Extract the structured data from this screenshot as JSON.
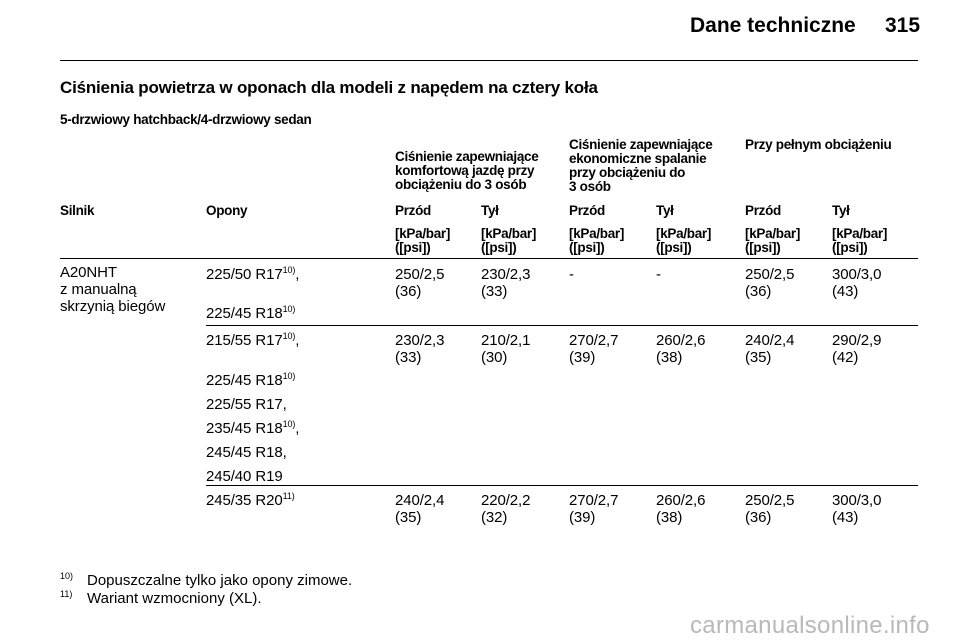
{
  "header": {
    "title": "Dane techniczne",
    "page_number": "315"
  },
  "section_title": "Ciśnienia powietrza w oponach dla modeli z napędem na cztery koła",
  "subsection": "5-drzwiowy hatchback/4-drzwiowy sedan",
  "table": {
    "group_headers": [
      [
        "Ciśnienie zapewniające",
        "komfortową jazdę przy",
        "obciążeniu do 3 osób"
      ],
      [
        "Ciśnienie zapewniające",
        "ekonomiczne spalanie",
        "przy obciążeniu do",
        "3 osób"
      ],
      [
        "Przy pełnym obciążeniu"
      ]
    ],
    "column_headers": [
      "Silnik",
      "Opony",
      "Przód",
      "Tył",
      "Przód",
      "Tył",
      "Przód",
      "Tył"
    ],
    "unit_line1": "[kPa/bar]",
    "unit_line2": "([psi])",
    "engine": [
      "A20NHT",
      "z manualną",
      "skrzynią biegów"
    ],
    "rows": [
      {
        "tyres": [
          {
            "text": "225/50 R17",
            "sup": "10)",
            "suffix": ","
          },
          {
            "text": "225/45 R18",
            "sup": "10)",
            "suffix": ""
          }
        ],
        "values": [
          [
            "250/2,5",
            "(36)"
          ],
          [
            "230/2,3",
            "(33)"
          ],
          [
            "-",
            ""
          ],
          [
            "-",
            ""
          ],
          [
            "250/2,5",
            "(36)"
          ],
          [
            "300/3,0",
            "(43)"
          ]
        ]
      },
      {
        "tyres": [
          {
            "text": "215/55 R17",
            "sup": "10)",
            "suffix": ","
          },
          {
            "text": "225/45 R18",
            "sup": "10)",
            "suffix": ""
          },
          {
            "text": "225/55 R17,",
            "sup": "",
            "suffix": ""
          },
          {
            "text": "235/45 R18",
            "sup": "10)",
            "suffix": ","
          },
          {
            "text": "245/45 R18,",
            "sup": "",
            "suffix": ""
          },
          {
            "text": "245/40 R19",
            "sup": "",
            "suffix": ""
          }
        ],
        "values": [
          [
            "230/2,3",
            "(33)"
          ],
          [
            "210/2,1",
            "(30)"
          ],
          [
            "270/2,7",
            "(39)"
          ],
          [
            "260/2,6",
            "(38)"
          ],
          [
            "240/2,4",
            "(35)"
          ],
          [
            "290/2,9",
            "(42)"
          ]
        ]
      },
      {
        "tyres": [
          {
            "text": "245/35 R20",
            "sup": "11)",
            "suffix": ""
          }
        ],
        "values": [
          [
            "240/2,4",
            "(35)"
          ],
          [
            "220/2,2",
            "(32)"
          ],
          [
            "270/2,7",
            "(39)"
          ],
          [
            "260/2,6",
            "(38)"
          ],
          [
            "250/2,5",
            "(36)"
          ],
          [
            "300/3,0",
            "(43)"
          ]
        ]
      }
    ]
  },
  "footnotes": [
    {
      "num": "10)",
      "text": "Dopuszczalne tylko jako opony zimowe."
    },
    {
      "num": "11)",
      "text": "Wariant wzmocniony (XL)."
    }
  ],
  "watermark": "carmanualsonline.info"
}
